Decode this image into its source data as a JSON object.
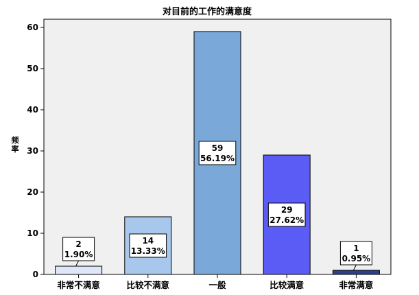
{
  "chart_data": {
    "type": "bar",
    "title": "对目前的工作的满意度",
    "ylabel": "频率",
    "categories": [
      "非常不满意",
      "比较不满意",
      "一般",
      "比较满意",
      "非常满意"
    ],
    "values": [
      2,
      14,
      59,
      29,
      1
    ],
    "percentages": [
      "1.90%",
      "13.33%",
      "56.19%",
      "27.62%",
      "0.95%"
    ],
    "ylim": [
      0,
      62
    ],
    "yticks": [
      0,
      10,
      20,
      30,
      40,
      50,
      60
    ],
    "colors": [
      "#dde7f7",
      "#a7c7ec",
      "#7aa8d8",
      "#5a5cf5",
      "#2c3f8a"
    ],
    "plot_background": "#f0f0f0",
    "grid": false,
    "legend": "none"
  }
}
